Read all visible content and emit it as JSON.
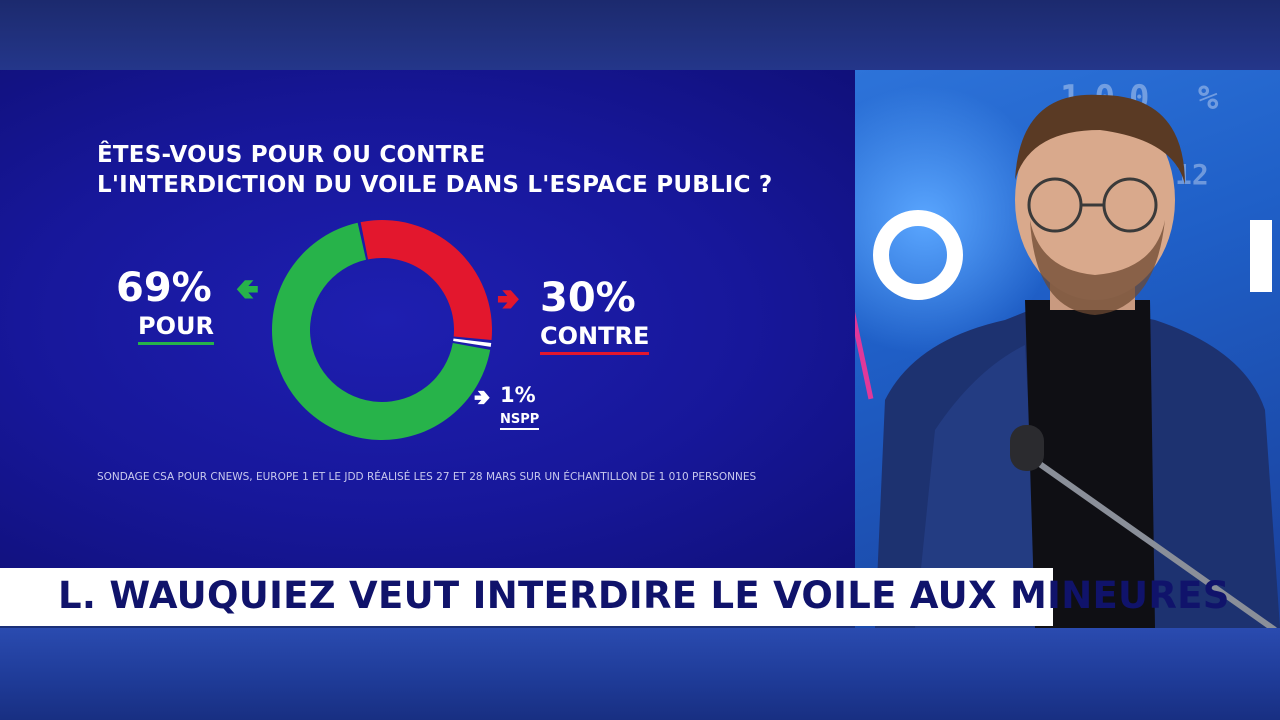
{
  "chart_data": {
    "type": "pie",
    "title": "ÊTES-VOUS POUR OU CONTRE L'INTERDICTION DU VOILE DANS L'ESPACE PUBLIC ?",
    "title_lines": [
      "ÊTES-VOUS POUR OU CONTRE",
      "L'INTERDICTION DU VOILE DANS L'ESPACE PUBLIC ?"
    ],
    "categories": [
      "POUR",
      "CONTRE",
      "NSPP"
    ],
    "values": [
      69,
      30,
      1
    ],
    "value_labels": [
      "69%",
      "30%",
      "1%"
    ],
    "colors": [
      "#27b34a",
      "#e3172d",
      "#ffffff"
    ],
    "donut": true,
    "source": "SONDAGE CSA POUR CNEWS, EUROPE 1 ET LE JDD RÉALISÉ LES 27 ET 28 MARS SUR UN ÉCHANTILLON DE 1 010 PERSONNES"
  },
  "headline": "L. WAUQUIEZ VEUT INTERDIRE LE VOILE AUX MINEURES",
  "background_text": {
    "digits": "100 %",
    "digits2": "12"
  },
  "icons": {
    "arrow_pour": "arrow-left-icon",
    "arrow_contre": "arrow-right-icon",
    "arrow_nspp": "arrow-right-icon"
  }
}
